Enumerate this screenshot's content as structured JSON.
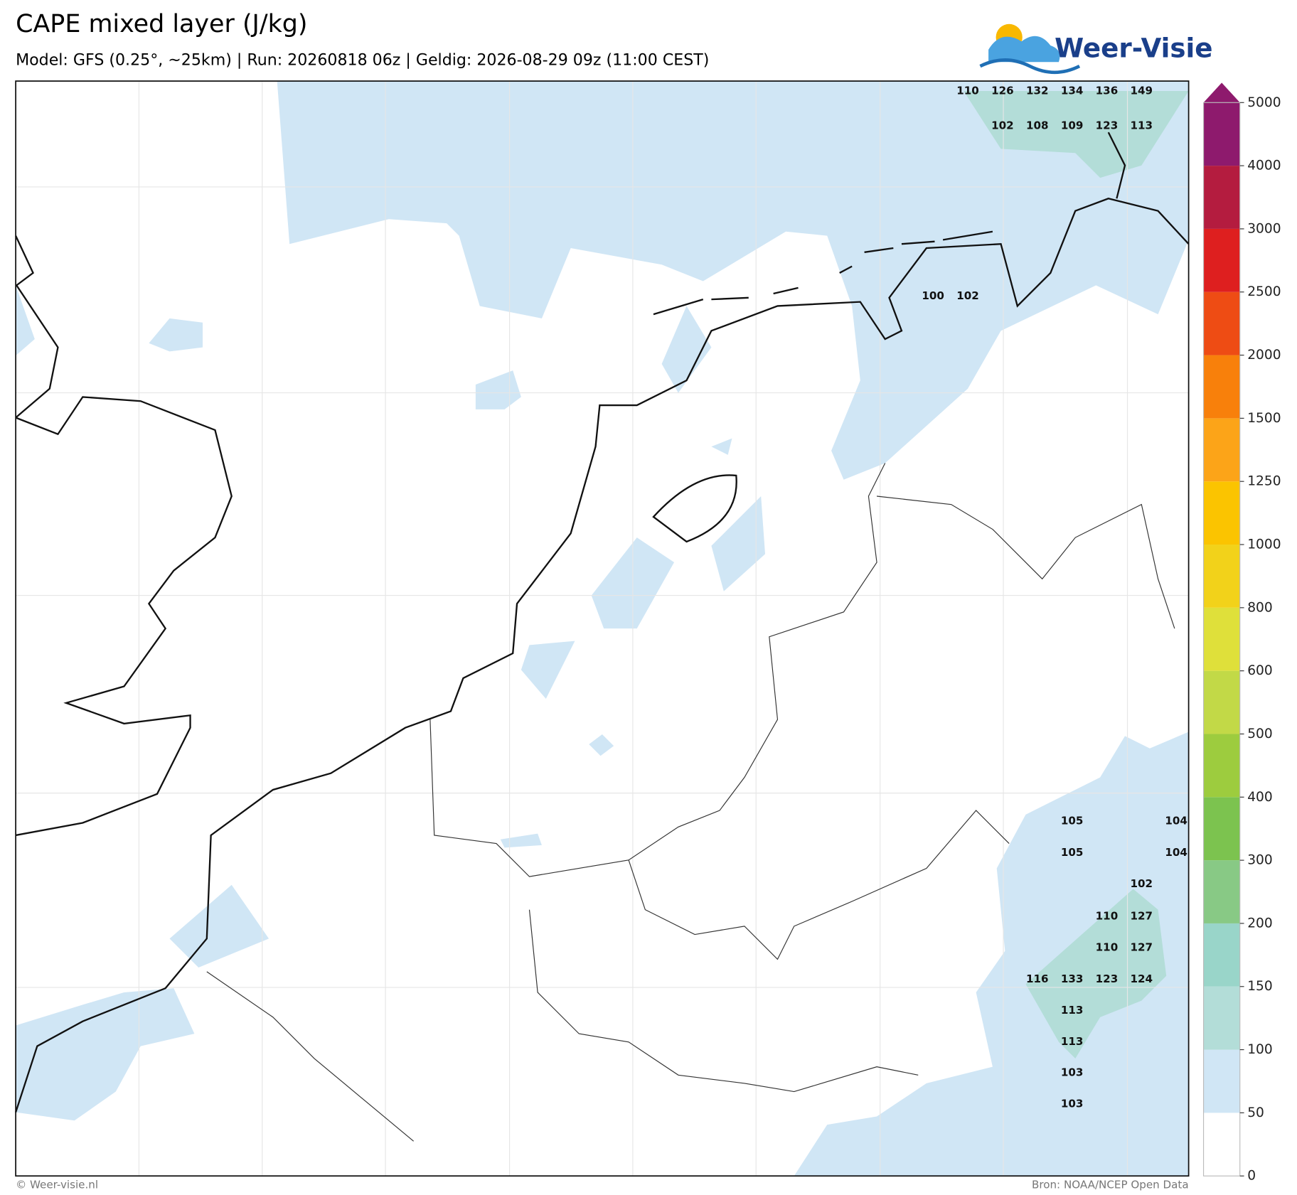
{
  "header": {
    "title": "CAPE mixed layer (J/kg)",
    "subtitle": "Model: GFS (0.25°, ~25km)  |  Run: 20260818 06z  |  Geldig: 2026-08-29 09z (11:00 CEST)",
    "logo": "Weer-Visie"
  },
  "colorbar": {
    "levels": [
      0,
      50,
      100,
      150,
      200,
      300,
      400,
      500,
      600,
      800,
      1000,
      1250,
      1500,
      2000,
      2500,
      3000,
      4000,
      5000
    ],
    "colors": [
      "#ffffff",
      "#d0e6f5",
      "#b3ddd8",
      "#99d5c9",
      "#88c985",
      "#7cc34f",
      "#9dcc3e",
      "#c2d947",
      "#dfe03a",
      "#f2d21a",
      "#fbc400",
      "#fca418",
      "#f8800b",
      "#ee4c14",
      "#de1f1f",
      "#b41c3f",
      "#8e1a6d"
    ]
  },
  "point_values": [
    110,
    126,
    132,
    134,
    136,
    149,
    102,
    108,
    109,
    123,
    113,
    100,
    102,
    105,
    104,
    105,
    104,
    102,
    110,
    127,
    110,
    127,
    116,
    133,
    123,
    124,
    113,
    113,
    103,
    103
  ],
  "footer": {
    "left": "© Weer-visie.nl",
    "right": "Bron: NOAA/NCEP Open Data"
  }
}
